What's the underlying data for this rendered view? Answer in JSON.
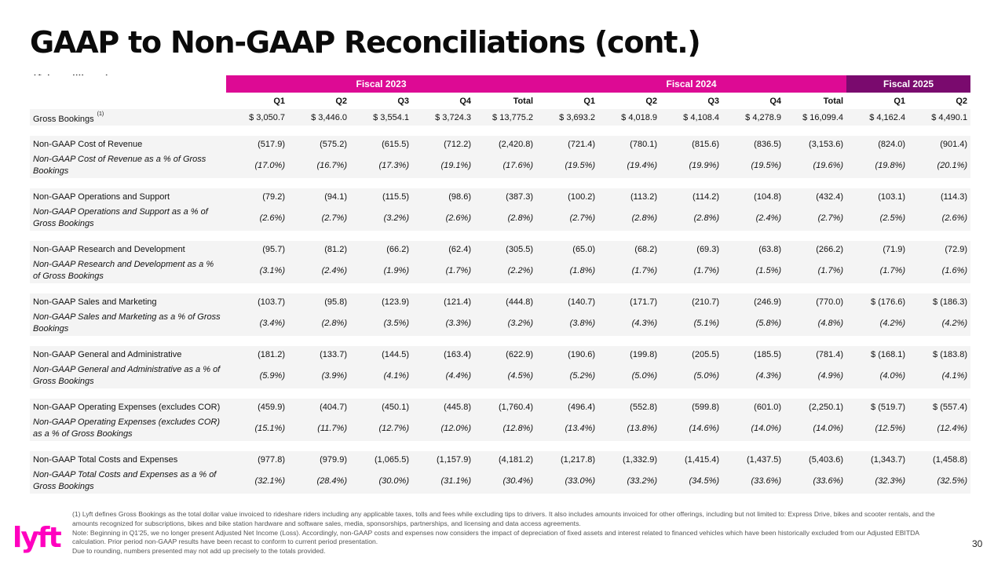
{
  "page": {
    "title": "GAAP to Non-GAAP Reconciliations (cont.)",
    "unit_note": "($ in millions)",
    "page_number": "30",
    "logo_text": "lyft",
    "brand_colors": {
      "magenta": "#dd0a94",
      "purple": "#7a0a6e",
      "logo": "#ff00bf"
    }
  },
  "table": {
    "fiscal_headers": [
      "Fiscal 2023",
      "Fiscal 2024",
      "Fiscal 2025"
    ],
    "quarter_headers": [
      "Q1",
      "Q2",
      "Q3",
      "Q4",
      "Total",
      "Q1",
      "Q2",
      "Q3",
      "Q4",
      "Total",
      "Q1",
      "Q2"
    ],
    "gross_bookings": {
      "label": "Gross Bookings",
      "footnote_ref": "(1)",
      "values": [
        "$ 3,050.7",
        "$ 3,446.0",
        "$ 3,554.1",
        "$ 3,724.3",
        "$ 13,775.2",
        "$ 3,693.2",
        "$ 4,018.9",
        "$ 4,108.4",
        "$ 4,278.9",
        "$ 16,099.4",
        "$ 4,162.4",
        "$ 4,490.1"
      ]
    },
    "groups": [
      {
        "label": "Non-GAAP Cost of Revenue",
        "values": [
          "(517.9)",
          "(575.2)",
          "(615.5)",
          "(712.2)",
          "(2,420.8)",
          "(721.4)",
          "(780.1)",
          "(815.6)",
          "(836.5)",
          "(3,153.6)",
          "(824.0)",
          "(901.4)"
        ],
        "pct_label": "Non-GAAP Cost of Revenue as a % of Gross Bookings",
        "pct_values": [
          "(17.0%)",
          "(16.7%)",
          "(17.3%)",
          "(19.1%)",
          "(17.6%)",
          "(19.5%)",
          "(19.4%)",
          "(19.9%)",
          "(19.5%)",
          "(19.6%)",
          "(19.8%)",
          "(20.1%)"
        ]
      },
      {
        "label": "Non-GAAP Operations and Support",
        "values": [
          "(79.2)",
          "(94.1)",
          "(115.5)",
          "(98.6)",
          "(387.3)",
          "(100.2)",
          "(113.2)",
          "(114.2)",
          "(104.8)",
          "(432.4)",
          "(103.1)",
          "(114.3)"
        ],
        "pct_label": "Non-GAAP Operations and Support as a % of Gross Bookings",
        "pct_values": [
          "(2.6%)",
          "(2.7%)",
          "(3.2%)",
          "(2.6%)",
          "(2.8%)",
          "(2.7%)",
          "(2.8%)",
          "(2.8%)",
          "(2.4%)",
          "(2.7%)",
          "(2.5%)",
          "(2.6%)"
        ]
      },
      {
        "label": "Non-GAAP Research and Development",
        "values": [
          "(95.7)",
          "(81.2)",
          "(66.2)",
          "(62.4)",
          "(305.5)",
          "(65.0)",
          "(68.2)",
          "(69.3)",
          "(63.8)",
          "(266.2)",
          "(71.9)",
          "(72.9)"
        ],
        "pct_label": "Non-GAAP Research and Development as a % of Gross Bookings",
        "pct_values": [
          "(3.1%)",
          "(2.4%)",
          "(1.9%)",
          "(1.7%)",
          "(2.2%)",
          "(1.8%)",
          "(1.7%)",
          "(1.7%)",
          "(1.5%)",
          "(1.7%)",
          "(1.7%)",
          "(1.6%)"
        ]
      },
      {
        "label": "Non-GAAP Sales and Marketing",
        "values": [
          "(103.7)",
          "(95.8)",
          "(123.9)",
          "(121.4)",
          "(444.8)",
          "(140.7)",
          "(171.7)",
          "(210.7)",
          "(246.9)",
          "(770.0)",
          "$ (176.6)",
          "$ (186.3)"
        ],
        "pct_label": "Non-GAAP Sales and Marketing as a % of Gross Bookings",
        "pct_values": [
          "(3.4%)",
          "(2.8%)",
          "(3.5%)",
          "(3.3%)",
          "(3.2%)",
          "(3.8%)",
          "(4.3%)",
          "(5.1%)",
          "(5.8%)",
          "(4.8%)",
          "(4.2%)",
          "(4.2%)"
        ]
      },
      {
        "label": "Non-GAAP General and Administrative",
        "values": [
          "(181.2)",
          "(133.7)",
          "(144.5)",
          "(163.4)",
          "(622.9)",
          "(190.6)",
          "(199.8)",
          "(205.5)",
          "(185.5)",
          "(781.4)",
          "$ (168.1)",
          "$ (183.8)"
        ],
        "pct_label": "Non-GAAP General and Administrative as a % of Gross Bookings",
        "pct_values": [
          "(5.9%)",
          "(3.9%)",
          "(4.1%)",
          "(4.4%)",
          "(4.5%)",
          "(5.2%)",
          "(5.0%)",
          "(5.0%)",
          "(4.3%)",
          "(4.9%)",
          "(4.0%)",
          "(4.1%)"
        ]
      },
      {
        "label": "Non-GAAP Operating Expenses (excludes COR)",
        "values": [
          "(459.9)",
          "(404.7)",
          "(450.1)",
          "(445.8)",
          "(1,760.4)",
          "(496.4)",
          "(552.8)",
          "(599.8)",
          "(601.0)",
          "(2,250.1)",
          "$ (519.7)",
          "$ (557.4)"
        ],
        "pct_label": "Non-GAAP Operating Expenses (excludes COR) as a % of Gross Bookings",
        "pct_values": [
          "(15.1%)",
          "(11.7%)",
          "(12.7%)",
          "(12.0%)",
          "(12.8%)",
          "(13.4%)",
          "(13.8%)",
          "(14.6%)",
          "(14.0%)",
          "(14.0%)",
          "(12.5%)",
          "(12.4%)"
        ]
      },
      {
        "label": "Non-GAAP Total Costs and Expenses",
        "values": [
          "(977.8)",
          "(979.9)",
          "(1,065.5)",
          "(1,157.9)",
          "(4,181.2)",
          "(1,217.8)",
          "(1,332.9)",
          "(1,415.4)",
          "(1,437.5)",
          "(5,403.6)",
          "(1,343.7)",
          "(1,458.8)"
        ],
        "pct_label": "Non-GAAP Total Costs and Expenses as a % of Gross Bookings",
        "pct_values": [
          "(32.1%)",
          "(28.4%)",
          "(30.0%)",
          "(31.1%)",
          "(30.4%)",
          "(33.0%)",
          "(33.2%)",
          "(34.5%)",
          "(33.6%)",
          "(33.6%)",
          "(32.3%)",
          "(32.5%)"
        ]
      }
    ]
  },
  "footnotes": [
    "(1) Lyft defines Gross Bookings as the total dollar value invoiced to rideshare riders including any applicable taxes, tolls and fees while excluding tips to drivers. It also includes amounts invoiced for other offerings, including but not limited to: Express Drive, bikes and scooter rentals, and the amounts recognized for subscriptions, bikes and bike station hardware and software sales, media, sponsorships, partnerships, and licensing and data access agreements.",
    "Note: Beginning in Q1'25, we no longer present Adjusted Net Income (Loss). Accordingly, non-GAAP costs and expenses now considers the impact of depreciation of fixed assets and interest related to financed vehicles which have been historically excluded from our Adjusted EBITDA calculation. Prior period non-GAAP results have been recast to conform to current period presentation.",
    "Due to rounding, numbers presented may not add up precisely to the totals provided."
  ]
}
